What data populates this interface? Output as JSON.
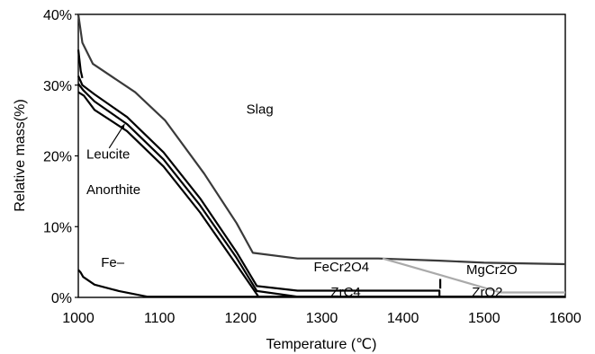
{
  "chart_data": {
    "type": "line",
    "xlabel": "Temperature (℃)",
    "ylabel": "Relative mass(%)",
    "xlim": [
      1000,
      1600
    ],
    "ylim": [
      0,
      40
    ],
    "x_ticks": [
      "1000",
      "1100",
      "1200",
      "1300",
      "1400",
      "1500",
      "1600"
    ],
    "y_ticks": [
      "0%",
      "10%",
      "20%",
      "30%",
      "40%"
    ],
    "grid": false,
    "series": [
      {
        "color": "#3a3a3a",
        "width": 2.2,
        "points": [
          [
            1000,
            40
          ],
          [
            1005,
            36
          ],
          [
            1018,
            33
          ],
          [
            1070,
            29
          ],
          [
            1107,
            25
          ],
          [
            1155,
            17.5
          ],
          [
            1195,
            10.5
          ],
          [
            1215,
            6.3
          ],
          [
            1270,
            5.5
          ],
          [
            1370,
            5.5
          ],
          [
            1445,
            5.2
          ],
          [
            1500,
            4.9
          ],
          [
            1600,
            4.7
          ]
        ]
      },
      {
        "color": "#aaaaaa",
        "width": 2.2,
        "points": [
          [
            1375,
            5.5
          ],
          [
            1445,
            3.2
          ],
          [
            1520,
            0.7
          ],
          [
            1600,
            0.7
          ]
        ]
      },
      {
        "color": "#000000",
        "width": 2.2,
        "points": [
          [
            1000,
            31.3
          ],
          [
            1005,
            30
          ],
          [
            1020,
            28.7
          ],
          [
            1060,
            25.5
          ],
          [
            1105,
            20.5
          ],
          [
            1150,
            14
          ],
          [
            1195,
            6.4
          ],
          [
            1220,
            1.6
          ],
          [
            1270,
            0.95
          ],
          [
            1445,
            0.95
          ],
          [
            1445,
            0.1
          ],
          [
            1600,
            0.1
          ]
        ]
      },
      {
        "color": "#000000",
        "width": 2.2,
        "points": [
          [
            1000,
            30.2
          ],
          [
            1006,
            29.3
          ],
          [
            1020,
            27.7
          ],
          [
            1060,
            24.5
          ],
          [
            1105,
            19.5
          ],
          [
            1150,
            13
          ],
          [
            1195,
            5.6
          ],
          [
            1220,
            0.9
          ],
          [
            1270,
            0.1
          ],
          [
            1600,
            0.1
          ]
        ]
      },
      {
        "color": "#000000",
        "width": 2.2,
        "points": [
          [
            1000,
            29
          ],
          [
            1007,
            28.5
          ],
          [
            1020,
            26.5
          ],
          [
            1060,
            23.5
          ],
          [
            1105,
            18.5
          ],
          [
            1150,
            12
          ],
          [
            1195,
            4.6
          ],
          [
            1222,
            0.1
          ],
          [
            1600,
            0.1
          ]
        ]
      },
      {
        "color": "#000000",
        "width": 2.2,
        "points": [
          [
            1000,
            3.9
          ],
          [
            1003,
            3.5
          ],
          [
            1006,
            2.9
          ],
          [
            1020,
            1.8
          ],
          [
            1050,
            0.9
          ],
          [
            1085,
            0.1
          ],
          [
            1600,
            0.1
          ]
        ]
      },
      {
        "color": "#000000",
        "width": 2.2,
        "points": [
          [
            1000,
            35
          ],
          [
            1003,
            32
          ],
          [
            1005,
            31
          ]
        ]
      },
      {
        "color": "#000000",
        "width": 2.2,
        "points": [
          [
            1446,
            1.25
          ],
          [
            1446,
            2.6
          ]
        ]
      }
    ],
    "annotations": [
      {
        "text": "Slag",
        "x": 1207,
        "y": 26
      },
      {
        "text": "Leucite",
        "x": 1010,
        "y": 19.6
      },
      {
        "text": "Anorthite",
        "x": 1010,
        "y": 14.6
      },
      {
        "text": "Fe–",
        "x": 1028,
        "y": 4.3
      },
      {
        "text": "FeCr2O4",
        "x": 1290,
        "y": 3.7
      },
      {
        "text": "MgCr2O",
        "x": 1478,
        "y": 3.3
      },
      {
        "text": "ZrC4",
        "x": 1311,
        "y": 0.15
      },
      {
        "text": "ZrO2",
        "x": 1485,
        "y": 0.15
      }
    ],
    "arrows": [
      {
        "from": [
          1038,
          21.1
        ],
        "to": [
          1057,
          24.5
        ]
      }
    ]
  }
}
